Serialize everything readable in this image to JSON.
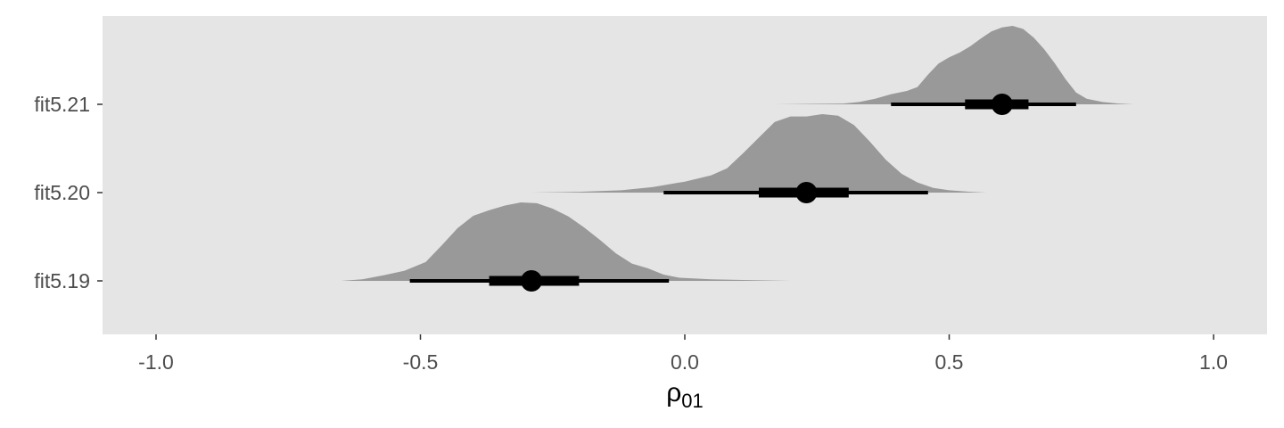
{
  "chart_data": {
    "type": "halfeye",
    "xlabel": {
      "base": "ρ",
      "subscript": "01"
    },
    "ylabel": "",
    "xlim": [
      -1.1,
      1.1
    ],
    "xticks": [
      -1.0,
      -0.5,
      0.0,
      0.5,
      1.0
    ],
    "xtick_labels": [
      "-1.0",
      "-0.5",
      "0.0",
      "0.5",
      "1.0"
    ],
    "grid": false,
    "panel_color": "#e5e5e5",
    "density_color": "#999999",
    "interval_color": "#000000",
    "series": [
      {
        "name": "fit5.21",
        "median": 0.6,
        "interval_66": [
          0.53,
          0.65
        ],
        "interval_95": [
          0.39,
          0.74
        ],
        "density": [
          [
            0.17,
            0.0
          ],
          [
            0.3,
            0.01
          ],
          [
            0.33,
            0.03
          ],
          [
            0.36,
            0.07
          ],
          [
            0.39,
            0.13
          ],
          [
            0.42,
            0.17
          ],
          [
            0.44,
            0.22
          ],
          [
            0.46,
            0.38
          ],
          [
            0.48,
            0.52
          ],
          [
            0.5,
            0.6
          ],
          [
            0.52,
            0.66
          ],
          [
            0.54,
            0.74
          ],
          [
            0.56,
            0.84
          ],
          [
            0.58,
            0.93
          ],
          [
            0.6,
            0.98
          ],
          [
            0.62,
            1.0
          ],
          [
            0.64,
            0.96
          ],
          [
            0.66,
            0.85
          ],
          [
            0.68,
            0.7
          ],
          [
            0.7,
            0.52
          ],
          [
            0.72,
            0.32
          ],
          [
            0.74,
            0.15
          ],
          [
            0.76,
            0.07
          ],
          [
            0.79,
            0.03
          ],
          [
            0.82,
            0.01
          ],
          [
            0.85,
            0.0
          ]
        ]
      },
      {
        "name": "fit5.20",
        "median": 0.23,
        "interval_66": [
          0.14,
          0.31
        ],
        "interval_95": [
          -0.04,
          0.46
        ],
        "density": [
          [
            -0.29,
            0.0
          ],
          [
            -0.2,
            0.01
          ],
          [
            -0.12,
            0.03
          ],
          [
            -0.06,
            0.07
          ],
          [
            0.0,
            0.14
          ],
          [
            0.05,
            0.22
          ],
          [
            0.08,
            0.31
          ],
          [
            0.11,
            0.5
          ],
          [
            0.14,
            0.7
          ],
          [
            0.17,
            0.9
          ],
          [
            0.2,
            0.97
          ],
          [
            0.23,
            0.97
          ],
          [
            0.26,
            1.0
          ],
          [
            0.29,
            0.98
          ],
          [
            0.32,
            0.86
          ],
          [
            0.35,
            0.65
          ],
          [
            0.38,
            0.42
          ],
          [
            0.41,
            0.24
          ],
          [
            0.44,
            0.13
          ],
          [
            0.47,
            0.06
          ],
          [
            0.5,
            0.03
          ],
          [
            0.54,
            0.01
          ],
          [
            0.57,
            0.0
          ]
        ]
      },
      {
        "name": "fit5.19",
        "median": -0.29,
        "interval_66": [
          -0.37,
          -0.2
        ],
        "interval_95": [
          -0.52,
          -0.03
        ],
        "density": [
          [
            -0.65,
            0.0
          ],
          [
            -0.61,
            0.02
          ],
          [
            -0.57,
            0.07
          ],
          [
            -0.53,
            0.13
          ],
          [
            -0.49,
            0.24
          ],
          [
            -0.46,
            0.45
          ],
          [
            -0.43,
            0.67
          ],
          [
            -0.4,
            0.83
          ],
          [
            -0.37,
            0.9
          ],
          [
            -0.34,
            0.96
          ],
          [
            -0.31,
            1.0
          ],
          [
            -0.28,
            0.99
          ],
          [
            -0.25,
            0.92
          ],
          [
            -0.22,
            0.82
          ],
          [
            -0.19,
            0.68
          ],
          [
            -0.16,
            0.52
          ],
          [
            -0.13,
            0.35
          ],
          [
            -0.1,
            0.22
          ],
          [
            -0.07,
            0.16
          ],
          [
            -0.04,
            0.08
          ],
          [
            -0.01,
            0.04
          ],
          [
            0.05,
            0.02
          ],
          [
            0.12,
            0.01
          ],
          [
            0.2,
            0.0
          ]
        ]
      }
    ]
  }
}
